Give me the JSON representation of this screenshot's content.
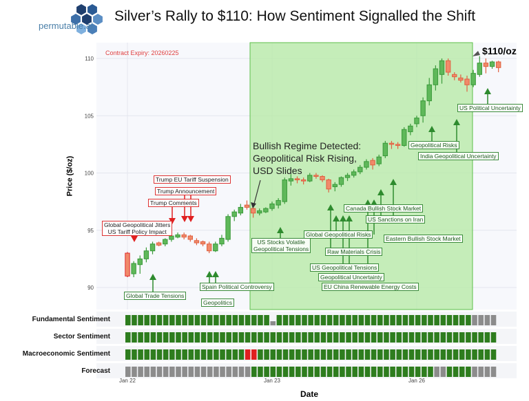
{
  "header": {
    "title": "Silver’s Rally to $110: How Sentiment Signalled the Shift",
    "brand": "permutable.ai"
  },
  "colors": {
    "up": "#3a9a3a",
    "down": "#e06040",
    "strong_down": "#e03030",
    "regime": "#b8eaa8",
    "sent_green": "#2e7d1e",
    "sent_gray": "#8c8c8c",
    "sent_red": "#e02020"
  },
  "chart_data": {
    "type": "candlestick",
    "ylabel": "Price ($/oz)",
    "xlabel": "Date",
    "ylim": [
      89,
      111
    ],
    "yticks": [
      "90",
      "95",
      "100",
      "105",
      "110"
    ],
    "xticks": [
      {
        "label": "Jan 22",
        "index": 0
      },
      {
        "label": "Jan 23",
        "index": 23
      },
      {
        "label": "Jan 26",
        "index": 46
      }
    ],
    "contract_label": "Contract Expiry: 20260225",
    "regime_label": "Bullish Regime Detected:\nGeopolitical Risk Rising,\nUSD Slides",
    "regime_range": [
      20,
      55
    ],
    "peak_label": "$110/oz",
    "candles": [
      [
        93,
        93.1,
        90.9,
        91
      ],
      [
        91.2,
        92.3,
        90.9,
        92.1
      ],
      [
        92,
        92.8,
        91.2,
        92.5
      ],
      [
        92.5,
        93.5,
        92.2,
        93.2
      ],
      [
        93.2,
        94,
        92.9,
        93.8
      ],
      [
        93.9,
        94,
        93.6,
        93.7
      ],
      [
        93.8,
        94.3,
        93.6,
        94.2
      ],
      [
        94.2,
        94.6,
        94,
        94.5
      ],
      [
        94.4,
        94.8,
        94.3,
        94.6
      ],
      [
        94.6,
        94.8,
        94.2,
        94.4
      ],
      [
        94.5,
        94.6,
        94,
        94.2
      ],
      [
        94.1,
        94.3,
        93.7,
        93.9
      ],
      [
        94,
        94.1,
        93.6,
        93.8
      ],
      [
        93.8,
        94,
        93,
        93.2
      ],
      [
        93.2,
        94,
        93.1,
        93.8
      ],
      [
        93.8,
        94.6,
        93.6,
        94.3
      ],
      [
        94.2,
        96.4,
        94,
        96.2
      ],
      [
        96.2,
        96.8,
        95.8,
        96.6
      ],
      [
        96.5,
        97.3,
        96.3,
        97
      ],
      [
        97.2,
        97.6,
        96.8,
        97
      ],
      [
        96.9,
        97.1,
        96.1,
        96.5
      ],
      [
        96.5,
        96.9,
        96.3,
        96.7
      ],
      [
        96.6,
        97,
        96.5,
        96.9
      ],
      [
        96.9,
        97.5,
        96.7,
        97.3
      ],
      [
        97.2,
        97.8,
        96.9,
        97.6
      ],
      [
        97.5,
        99.6,
        97.3,
        99.4
      ],
      [
        99.3,
        99.9,
        98.9,
        99.5
      ],
      [
        99.5,
        99.7,
        99.1,
        99.4
      ],
      [
        99.4,
        99.6,
        99,
        99.3
      ],
      [
        99.3,
        100,
        99.2,
        99.8
      ],
      [
        99.8,
        100,
        99.5,
        99.7
      ],
      [
        99.7,
        99.8,
        99.2,
        99.4
      ],
      [
        99.4,
        99.5,
        98.3,
        98.6
      ],
      [
        98.8,
        99.2,
        98.4,
        99
      ],
      [
        99,
        99.7,
        98.8,
        99.6
      ],
      [
        99.6,
        100,
        99.3,
        99.8
      ],
      [
        99.8,
        100.3,
        99.6,
        100.1
      ],
      [
        100.1,
        100.7,
        99.9,
        100.5
      ],
      [
        100.5,
        101.2,
        100.3,
        101
      ],
      [
        101.1,
        101.3,
        100.3,
        100.7
      ],
      [
        100.8,
        101.6,
        100.6,
        101.4
      ],
      [
        101.5,
        102.8,
        101.3,
        102.6
      ],
      [
        102.6,
        102.8,
        102.1,
        102.5
      ],
      [
        102.5,
        102.7,
        102.1,
        102.4
      ],
      [
        102.4,
        104,
        102.3,
        103.8
      ],
      [
        103.6,
        104.3,
        103.3,
        104.1
      ],
      [
        104.3,
        105,
        104,
        104.8
      ],
      [
        105,
        106.6,
        104.4,
        106.3
      ],
      [
        106.3,
        108.3,
        105.9,
        107.7
      ],
      [
        107.7,
        109.4,
        107.2,
        109.1
      ],
      [
        108.6,
        110,
        107.8,
        109.8
      ],
      [
        109.8,
        110,
        108.5,
        108.8
      ],
      [
        108.6,
        108.8,
        108.1,
        108.4
      ],
      [
        108.3,
        108.6,
        107.9,
        108.1
      ],
      [
        108.2,
        108.5,
        107.1,
        107.7
      ],
      [
        107.7,
        109,
        107.5,
        108.7
      ],
      [
        108.6,
        110.2,
        108.4,
        109.6
      ],
      [
        109.6,
        110,
        108.7,
        109.3
      ],
      [
        109.3,
        109.8,
        109.1,
        109.7
      ],
      [
        109.7,
        109.8,
        108.8,
        109.2
      ]
    ],
    "sentiment_rows": [
      {
        "name": "Fundamental Sentiment",
        "values": "GGGGGGGGGGGGGGGGGGGGGGGNGGGGGGGGGGGGGGGGGGGGGGGGGGGGGGGNNNNGG"
      },
      {
        "name": "Sector Sentiment",
        "values": "GGGGGGGGGGGGGGGGGGGGGGGGGGGGGGGGGGGGGGGGGGGGGGGGGGGGGGGGGGGG"
      },
      {
        "name": "Macroeconomic Sentiment",
        "values": "GGGGGGGGGGGGGGGGGGGRRGGGGGGGGGGGGGGGGGGGGGGGGGGGGGGGGGGGGGGG"
      },
      {
        "name": "Forecast",
        "values": "NNNNNNNNNNNNNNNNNNNNGGGGGGGGGGGGGGGGGGGGGGGGGGGGGNNGGGGNNNNN"
      }
    ],
    "annotations": [
      {
        "text": "Global Geopolitical Jitters\nUS Tariff Policy Impact",
        "color": "red",
        "direction": "down"
      },
      {
        "text": "Trump Comments",
        "color": "red",
        "direction": "down"
      },
      {
        "text": "Trump Announcement",
        "color": "red",
        "direction": "down"
      },
      {
        "text": "Trump EU Tariff Suspension",
        "color": "red",
        "direction": "down"
      },
      {
        "text": "Global Trade Tensions",
        "color": "green",
        "direction": "up"
      },
      {
        "text": "Spain Political Controversy",
        "color": "green",
        "direction": "up"
      },
      {
        "text": "Geopolitics",
        "color": "green",
        "direction": "up"
      },
      {
        "text": "US Stocks Volatile\nGeopolitical Tensions",
        "color": "green",
        "direction": "up"
      },
      {
        "text": "Raw Materials Crisis",
        "color": "green",
        "direction": "up"
      },
      {
        "text": "Eastern Bullish Stock Market",
        "color": "green",
        "direction": "up"
      },
      {
        "text": "Global Geopolitical Risks",
        "color": "green",
        "direction": "up"
      },
      {
        "text": "Canada Bullish Stock Market",
        "color": "green",
        "direction": "up"
      },
      {
        "text": "US Sanctions on Iran",
        "color": "green",
        "direction": "up"
      },
      {
        "text": "US Geopolitical Tensions",
        "color": "green",
        "direction": "up"
      },
      {
        "text": "Geopolitical Uncertainty",
        "color": "green",
        "direction": "up"
      },
      {
        "text": "EU China Renewable Energy Costs",
        "color": "green",
        "direction": "up"
      },
      {
        "text": "Geopolitical Risks",
        "color": "green",
        "direction": "up"
      },
      {
        "text": "India Geopolitical Uncertainty",
        "color": "green",
        "direction": "up"
      },
      {
        "text": "US Political Uncertainty",
        "color": "green",
        "direction": "up"
      }
    ]
  }
}
